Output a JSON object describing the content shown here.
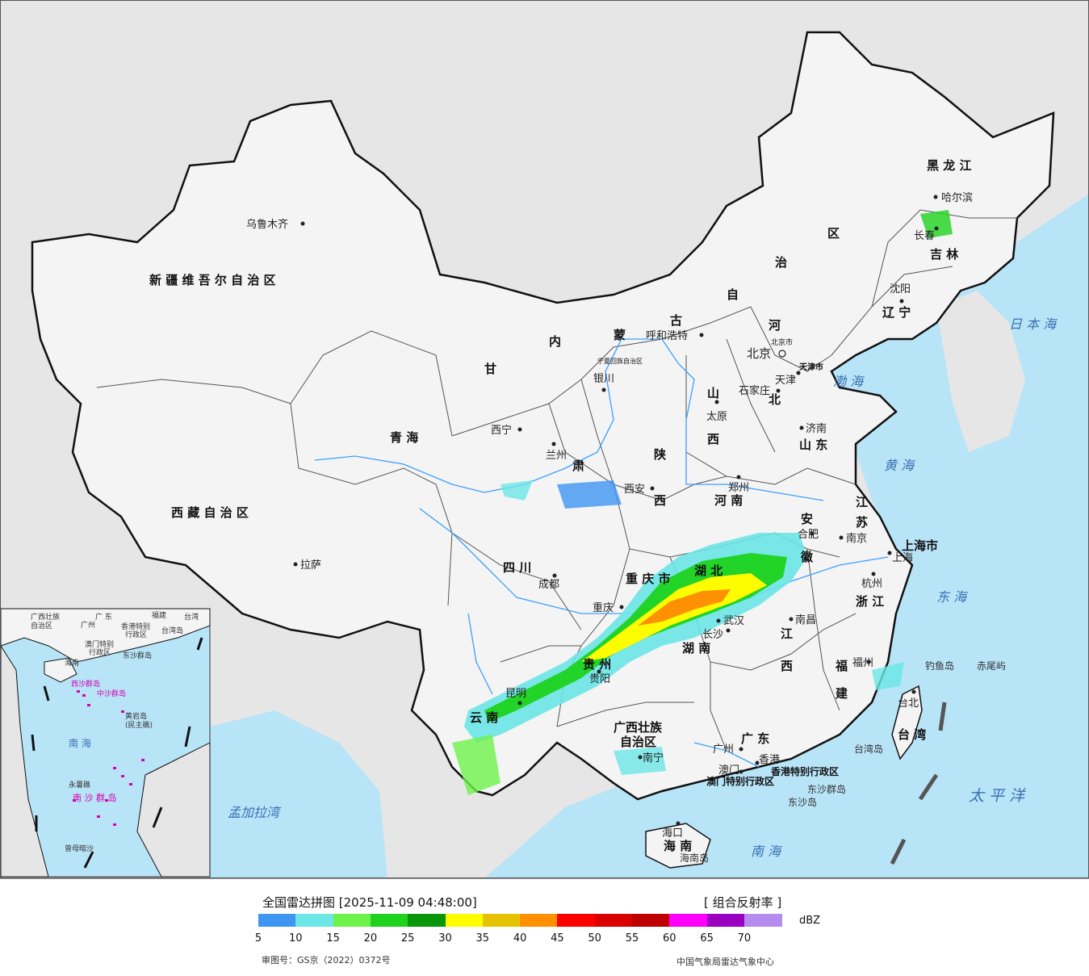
{
  "map": {
    "province_labels": [
      {
        "id": "xinjiang",
        "text": "新 疆 维 吾 尔 自 治 区"
      },
      {
        "id": "xizang",
        "text": "西 藏 自 治 区"
      },
      {
        "id": "qinghai",
        "text": "青      海"
      },
      {
        "id": "gansu",
        "text": "甘"
      },
      {
        "id": "neimenggu1",
        "text": "内"
      },
      {
        "id": "neimenggu2",
        "text": "蒙"
      },
      {
        "id": "neimenggu3",
        "text": "古"
      },
      {
        "id": "neimenggu4",
        "text": "自"
      },
      {
        "id": "neimenggu5",
        "text": "治"
      },
      {
        "id": "neimenggu6",
        "text": "区"
      },
      {
        "id": "heilongjiang",
        "text": "黑 龙 江"
      },
      {
        "id": "jilin",
        "text": "吉 林"
      },
      {
        "id": "liaoning",
        "text": "辽 宁"
      },
      {
        "id": "hebei1",
        "text": "河"
      },
      {
        "id": "hebei2",
        "text": "北"
      },
      {
        "id": "shanxi1",
        "text": "山"
      },
      {
        "id": "shanxi2",
        "text": "西"
      },
      {
        "id": "shaanxi1",
        "text": "陕"
      },
      {
        "id": "shaanxi2",
        "text": "西"
      },
      {
        "id": "shandong",
        "text": "山 东"
      },
      {
        "id": "henan",
        "text": "河 南"
      },
      {
        "id": "jiangsu1",
        "text": "江"
      },
      {
        "id": "jiangsu2",
        "text": "苏"
      },
      {
        "id": "anhui1",
        "text": "安"
      },
      {
        "id": "anhui2",
        "text": "徽"
      },
      {
        "id": "shanghai",
        "text": "上海市"
      },
      {
        "id": "zhejiang",
        "text": "浙 江"
      },
      {
        "id": "hubei",
        "text": "湖 北"
      },
      {
        "id": "hunan",
        "text": "湖 南"
      },
      {
        "id": "jiangxi1",
        "text": "江"
      },
      {
        "id": "jiangxi2",
        "text": "西"
      },
      {
        "id": "fujian1",
        "text": "福"
      },
      {
        "id": "fujian2",
        "text": "建"
      },
      {
        "id": "sichuan",
        "text": "四 川"
      },
      {
        "id": "chongqing",
        "text": "重 庆 市"
      },
      {
        "id": "guizhou",
        "text": "贵 州"
      },
      {
        "id": "yunnan",
        "text": "云 南"
      },
      {
        "id": "guangxi1",
        "text": "广西壮族"
      },
      {
        "id": "guangxi2",
        "text": "自治区"
      },
      {
        "id": "guangdong",
        "text": "广 东"
      },
      {
        "id": "hainan",
        "text": "海 南"
      },
      {
        "id": "ningxia",
        "text": "宁夏回族自治区"
      },
      {
        "id": "tianjin",
        "text": "天津市"
      },
      {
        "id": "beijing_city",
        "text": "北京市"
      },
      {
        "id": "hk_sar",
        "text": "香港特别行政区"
      },
      {
        "id": "macao_sar",
        "text": "澳门特别行政区"
      },
      {
        "id": "taiwan",
        "text": "台 湾"
      },
      {
        "id": "gansu2",
        "text": "肃"
      }
    ],
    "cities": [
      {
        "id": "urumqi",
        "text": "乌鲁木齐"
      },
      {
        "id": "lhasa",
        "text": "拉萨"
      },
      {
        "id": "xining",
        "text": "西宁"
      },
      {
        "id": "lanzhou",
        "text": "兰州"
      },
      {
        "id": "yinchuan",
        "text": "银川"
      },
      {
        "id": "hohhot",
        "text": "呼和浩特"
      },
      {
        "id": "beijing",
        "text": "北京"
      },
      {
        "id": "tianjin_c",
        "text": "天津"
      },
      {
        "id": "shijiazhuang",
        "text": "石家庄"
      },
      {
        "id": "taiyuan",
        "text": "太原"
      },
      {
        "id": "xian",
        "text": "西安"
      },
      {
        "id": "zhengzhou",
        "text": "郑州"
      },
      {
        "id": "jinan",
        "text": "济南"
      },
      {
        "id": "harbin",
        "text": "哈尔滨"
      },
      {
        "id": "changchun",
        "text": "长春"
      },
      {
        "id": "shenyang",
        "text": "沈阳"
      },
      {
        "id": "hefei",
        "text": "合肥"
      },
      {
        "id": "nanjing",
        "text": "南京"
      },
      {
        "id": "shanghai_c",
        "text": "上海"
      },
      {
        "id": "hangzhou",
        "text": "杭州"
      },
      {
        "id": "wuhan",
        "text": "武汉"
      },
      {
        "id": "changsha",
        "text": "长沙"
      },
      {
        "id": "nanchang",
        "text": "南昌"
      },
      {
        "id": "fuzhou",
        "text": "福州"
      },
      {
        "id": "taibei",
        "text": "台北"
      },
      {
        "id": "chengdu",
        "text": "成都"
      },
      {
        "id": "chongqing_c",
        "text": "重庆"
      },
      {
        "id": "guiyang",
        "text": "贵阳"
      },
      {
        "id": "kunming",
        "text": "昆明"
      },
      {
        "id": "nanning",
        "text": "南宁"
      },
      {
        "id": "guangzhou",
        "text": "广州"
      },
      {
        "id": "hongkong",
        "text": "香港"
      },
      {
        "id": "macao",
        "text": "澳门"
      },
      {
        "id": "haikou",
        "text": "海口"
      }
    ],
    "sea_labels": [
      {
        "id": "bohai",
        "text": "渤 海"
      },
      {
        "id": "huanghai",
        "text": "黄 海"
      },
      {
        "id": "donghai",
        "text": "东 海"
      },
      {
        "id": "nanhai",
        "text": "南 海"
      },
      {
        "id": "taipingyang",
        "text": "太 平 洋"
      },
      {
        "id": "ribenhai",
        "text": "日 本 海"
      },
      {
        "id": "mengjialawan",
        "text": "孟加拉湾"
      }
    ],
    "island_labels": [
      {
        "id": "diaoyudao",
        "text": "钓鱼岛"
      },
      {
        "id": "chiweiyu",
        "text": "赤尾屿"
      },
      {
        "id": "taiwandao",
        "text": "台湾岛"
      },
      {
        "id": "dongshaqundao",
        "text": "东沙群岛"
      },
      {
        "id": "dongshadao",
        "text": "东沙岛"
      },
      {
        "id": "hainandao",
        "text": "海南岛"
      }
    ],
    "inset_labels": [
      {
        "id": "in_guangxi",
        "text": "广西壮族"
      },
      {
        "id": "in_zizhiqu",
        "text": "自治区"
      },
      {
        "id": "in_guangdong",
        "text": "广 东"
      },
      {
        "id": "in_fujian",
        "text": "福建"
      },
      {
        "id": "in_taiwan",
        "text": "台湾"
      },
      {
        "id": "in_guangzhou",
        "text": "广州"
      },
      {
        "id": "in_hk",
        "text": "香港特别"
      },
      {
        "id": "in_hk2",
        "text": "行政区"
      },
      {
        "id": "in_macao",
        "text": "澳门特别"
      },
      {
        "id": "in_macao2",
        "text": "行政区"
      },
      {
        "id": "in_taiwandao",
        "text": "台湾岛"
      },
      {
        "id": "in_dongsha",
        "text": "东沙群岛"
      },
      {
        "id": "in_hainan",
        "text": "海南"
      },
      {
        "id": "in_xisha",
        "text": "西沙群岛"
      },
      {
        "id": "in_zhongsha",
        "text": "中沙群岛"
      },
      {
        "id": "in_huangyan",
        "text": "黄岩岛"
      },
      {
        "id": "in_minzhu",
        "text": "(民主礁)"
      },
      {
        "id": "in_nanhai",
        "text": "南      海"
      },
      {
        "id": "in_nansha",
        "text": "南 沙 群 岛"
      },
      {
        "id": "in_yongshu",
        "text": "永暑礁"
      },
      {
        "id": "in_zengmu",
        "text": "曾母暗沙"
      }
    ]
  },
  "footer": {
    "title": "全国雷达拼图 [2025-11-09 04:48:00]",
    "product": "[ 组合反射率 ]",
    "unit": "dBZ",
    "approval": "审图号：GS京（2022）0372号",
    "source": "中国气象局雷达气象中心"
  },
  "legend": {
    "colors": [
      "#3f95f2",
      "#6ce6e6",
      "#6ef24c",
      "#1ed21e",
      "#0a960a",
      "#fdfd00",
      "#e6c300",
      "#ff9100",
      "#ff0000",
      "#d90000",
      "#bf0000",
      "#ff00ff",
      "#9a00bf",
      "#b48cf0"
    ],
    "labels": [
      "5",
      "10",
      "15",
      "20",
      "25",
      "30",
      "35",
      "40",
      "45",
      "50",
      "55",
      "60",
      "65",
      "70"
    ]
  }
}
